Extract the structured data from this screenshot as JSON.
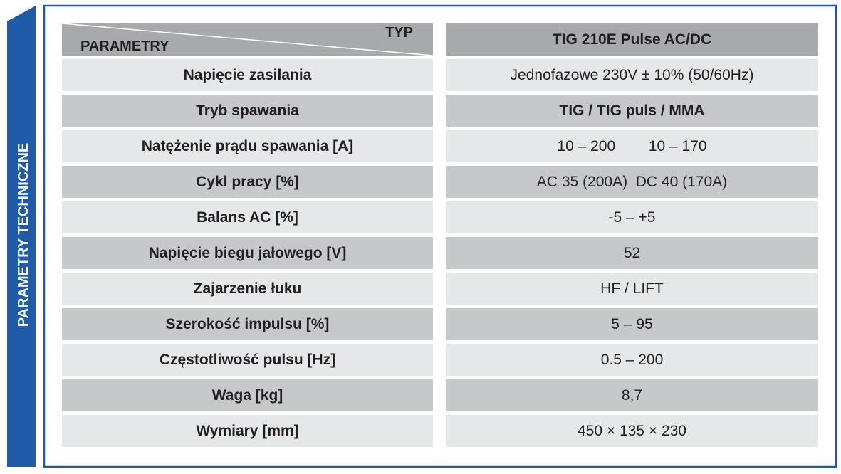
{
  "sidebar": {
    "title": "PARAMETRY TECHNICZNE"
  },
  "table": {
    "header": {
      "param": "PARAMETRY",
      "typ": "TYP",
      "model": "TIG 210E Pulse AC/DC"
    },
    "rows": [
      [
        "Napięcie zasilania",
        "Jednofazowe 230V ± 10% (50/60Hz)"
      ],
      [
        "Tryb spawania",
        "TIG / TIG puls / MMA"
      ],
      [
        "Natężenie prądu spawania [A]",
        "10 – 200        10 – 170"
      ],
      [
        "Cykl pracy [%]",
        "AC 35 (200A)  DC 40 (170A)"
      ],
      [
        "Balans AC [%]",
        "-5 – +5"
      ],
      [
        "Napięcie biegu jałowego [V]",
        "52"
      ],
      [
        "Zajarzenie łuku",
        "HF / LIFT"
      ],
      [
        "Szerokość impulsu [%]",
        "5 – 95"
      ],
      [
        "Częstotliwość pulsu [Hz]",
        "0.5 – 200"
      ],
      [
        "Waga [kg]",
        "8,7"
      ],
      [
        "Wymiary [mm]",
        "450 × 135 × 230"
      ]
    ]
  }
}
